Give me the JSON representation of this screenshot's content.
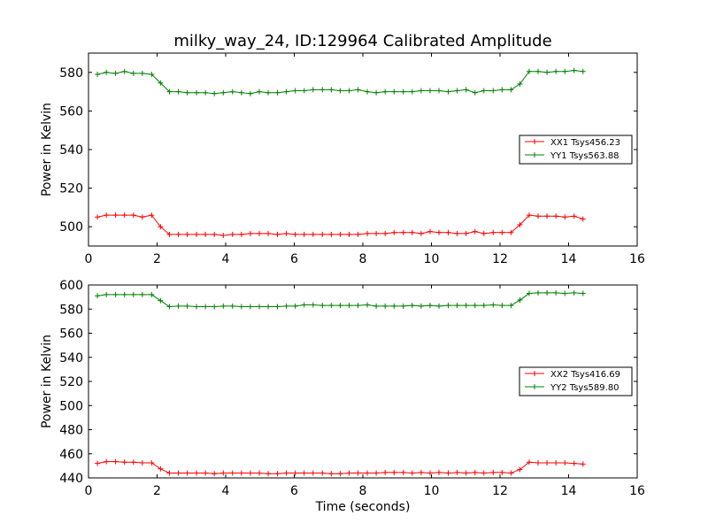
{
  "title": "milky_way_24, ID:129964 Calibrated Amplitude",
  "xlabel": "Time (seconds)",
  "chart_data": [
    {
      "type": "line",
      "ylabel": "Power in Kelvin",
      "xlim": [
        0,
        16
      ],
      "ylim": [
        490,
        590
      ],
      "xticks": [
        0,
        2,
        4,
        6,
        8,
        10,
        12,
        14,
        16
      ],
      "yticks": [
        500,
        520,
        540,
        560,
        580
      ],
      "legend_position": "center-right",
      "series": [
        {
          "name": "XX1 Tsys456.23",
          "color": "#ff0000",
          "x": [
            0.26,
            0.52,
            0.79,
            1.05,
            1.31,
            1.57,
            1.84,
            2.1,
            2.36,
            2.62,
            2.88,
            3.15,
            3.41,
            3.67,
            3.93,
            4.2,
            4.46,
            4.72,
            4.98,
            5.24,
            5.51,
            5.77,
            6.03,
            6.29,
            6.55,
            6.82,
            7.08,
            7.34,
            7.6,
            7.86,
            8.13,
            8.39,
            8.65,
            8.91,
            9.18,
            9.44,
            9.7,
            9.96,
            10.22,
            10.49,
            10.75,
            11.01,
            11.27,
            11.53,
            11.8,
            12.06,
            12.32,
            12.58,
            12.85,
            13.11,
            13.37,
            13.63,
            13.89,
            14.16,
            14.42
          ],
          "y": [
            505,
            506,
            506,
            506,
            506,
            505,
            506,
            500,
            496,
            496,
            496,
            496,
            496,
            496,
            495.5,
            496,
            496,
            496.5,
            496.5,
            496.5,
            496,
            496.5,
            496,
            496,
            496,
            496,
            496,
            496,
            496,
            496,
            496.5,
            496.5,
            496.5,
            497,
            497,
            497,
            496.5,
            497.5,
            497,
            497,
            496.5,
            496.5,
            497.5,
            496.5,
            497,
            497,
            497,
            501,
            506,
            505.5,
            505.5,
            505.5,
            505,
            505.5,
            504
          ]
        },
        {
          "name": "YY1 Tsys563.88",
          "color": "#008000",
          "x": [
            0.26,
            0.52,
            0.79,
            1.05,
            1.31,
            1.57,
            1.84,
            2.1,
            2.36,
            2.62,
            2.88,
            3.15,
            3.41,
            3.67,
            3.93,
            4.2,
            4.46,
            4.72,
            4.98,
            5.24,
            5.51,
            5.77,
            6.03,
            6.29,
            6.55,
            6.82,
            7.08,
            7.34,
            7.6,
            7.86,
            8.13,
            8.39,
            8.65,
            8.91,
            9.18,
            9.44,
            9.7,
            9.96,
            10.22,
            10.49,
            10.75,
            11.01,
            11.27,
            11.53,
            11.8,
            12.06,
            12.32,
            12.58,
            12.85,
            13.11,
            13.37,
            13.63,
            13.89,
            14.16,
            14.42
          ],
          "y": [
            579,
            580,
            579.5,
            580.5,
            579.5,
            579.5,
            579,
            574.5,
            570,
            570,
            569.5,
            569.5,
            569.5,
            569,
            569.5,
            570,
            569.5,
            569,
            570,
            569.5,
            569.5,
            570,
            570.5,
            570.5,
            571,
            571,
            571,
            570.5,
            570.5,
            571,
            570,
            569.5,
            570,
            570,
            570,
            570,
            570.5,
            570.5,
            570.5,
            570,
            570.5,
            571,
            569.5,
            570.5,
            570.5,
            571,
            571,
            574,
            580.5,
            580.5,
            580,
            580.5,
            580.5,
            581,
            580.5
          ]
        }
      ]
    },
    {
      "type": "line",
      "ylabel": "Power in Kelvin",
      "xlabel": "Time (seconds)",
      "xlim": [
        0,
        16
      ],
      "ylim": [
        440,
        600
      ],
      "xticks": [
        0,
        2,
        4,
        6,
        8,
        10,
        12,
        14,
        16
      ],
      "yticks": [
        440,
        460,
        480,
        500,
        520,
        540,
        560,
        580,
        600
      ],
      "legend_position": "center-right",
      "series": [
        {
          "name": "XX2 Tsys416.69",
          "color": "#ff0000",
          "x": [
            0.26,
            0.52,
            0.79,
            1.05,
            1.31,
            1.57,
            1.84,
            2.1,
            2.36,
            2.62,
            2.88,
            3.15,
            3.41,
            3.67,
            3.93,
            4.2,
            4.46,
            4.72,
            4.98,
            5.24,
            5.51,
            5.77,
            6.03,
            6.29,
            6.55,
            6.82,
            7.08,
            7.34,
            7.6,
            7.86,
            8.13,
            8.39,
            8.65,
            8.91,
            9.18,
            9.44,
            9.7,
            9.96,
            10.22,
            10.49,
            10.75,
            11.01,
            11.27,
            11.53,
            11.8,
            12.06,
            12.32,
            12.58,
            12.85,
            13.11,
            13.37,
            13.63,
            13.89,
            14.16,
            14.42
          ],
          "y": [
            452,
            453.5,
            453.5,
            453,
            453,
            452.5,
            452.5,
            447.5,
            444,
            444,
            444,
            444,
            444,
            443.5,
            444,
            444,
            444,
            444,
            444,
            443.5,
            443.5,
            444,
            444,
            444,
            444,
            444,
            443.5,
            443.5,
            444,
            444,
            444,
            444,
            444.5,
            444.5,
            444.5,
            444,
            444.5,
            444,
            444.5,
            444,
            444.5,
            444,
            444.5,
            444,
            444.5,
            444.5,
            444,
            447,
            453,
            452.5,
            452.5,
            452.5,
            452.5,
            452,
            451.5
          ]
        },
        {
          "name": "YY2 Tsys589.80",
          "color": "#008000",
          "x": [
            0.26,
            0.52,
            0.79,
            1.05,
            1.31,
            1.57,
            1.84,
            2.1,
            2.36,
            2.62,
            2.88,
            3.15,
            3.41,
            3.67,
            3.93,
            4.2,
            4.46,
            4.72,
            4.98,
            5.24,
            5.51,
            5.77,
            6.03,
            6.29,
            6.55,
            6.82,
            7.08,
            7.34,
            7.6,
            7.86,
            8.13,
            8.39,
            8.65,
            8.91,
            9.18,
            9.44,
            9.7,
            9.96,
            10.22,
            10.49,
            10.75,
            11.01,
            11.27,
            11.53,
            11.8,
            12.06,
            12.32,
            12.58,
            12.85,
            13.11,
            13.37,
            13.63,
            13.89,
            14.16,
            14.42
          ],
          "y": [
            591,
            592,
            592,
            592,
            592,
            592,
            592,
            587,
            582,
            582.5,
            582.5,
            582,
            582,
            582,
            582.5,
            582.5,
            582,
            582,
            582,
            582,
            582,
            582.5,
            582.5,
            583.5,
            583.5,
            583,
            583,
            583,
            583,
            583,
            583.5,
            582.5,
            582.5,
            582.5,
            582.5,
            583,
            582.5,
            583,
            582.5,
            583,
            583,
            583,
            583,
            583,
            583.5,
            583,
            583,
            587.5,
            593,
            593.5,
            593.5,
            593.5,
            593,
            593.5,
            593
          ]
        }
      ]
    }
  ]
}
